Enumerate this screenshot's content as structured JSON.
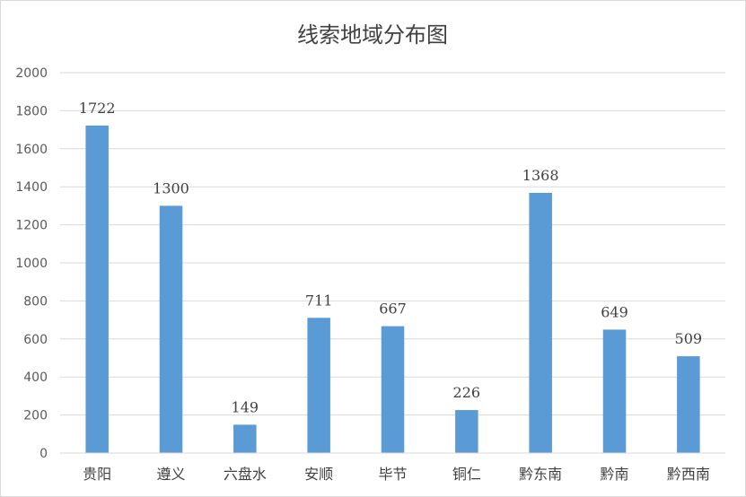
{
  "chart_data": {
    "type": "bar",
    "title": "线索地域分布图",
    "xlabel": "",
    "ylabel": "",
    "categories": [
      "贵阳",
      "遵义",
      "六盘水",
      "安顺",
      "毕节",
      "铜仁",
      "黔东南",
      "黔南",
      "黔西南"
    ],
    "values": [
      1722,
      1300,
      149,
      711,
      667,
      226,
      1368,
      649,
      509
    ],
    "ylim": [
      0,
      2000
    ],
    "yticks": [
      0,
      200,
      400,
      600,
      800,
      1000,
      1200,
      1400,
      1600,
      1800,
      2000
    ],
    "grid": true,
    "legend": "none",
    "bar_color": "#5B9BD5",
    "grid_color": "#d9d9d9"
  }
}
